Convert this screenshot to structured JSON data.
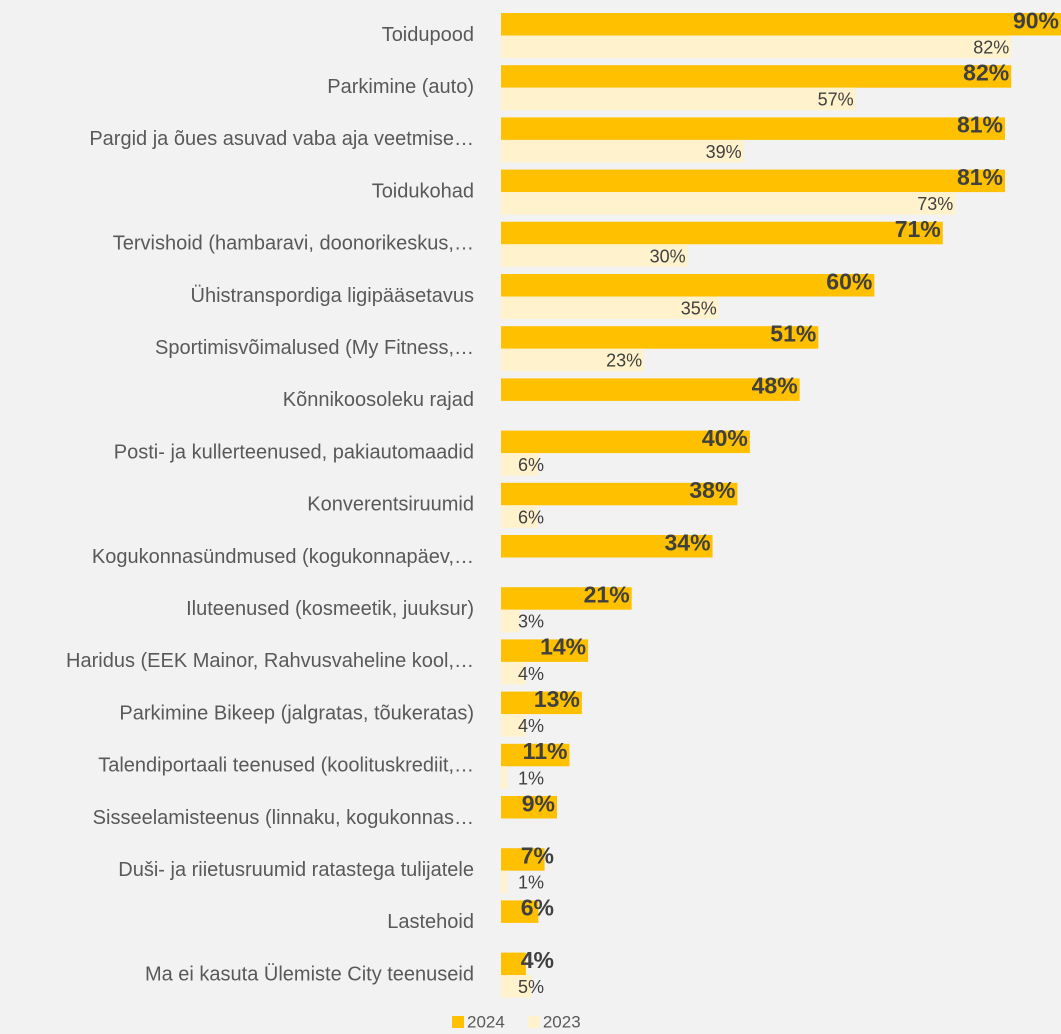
{
  "chart_data": {
    "type": "barh",
    "categories": [
      "Toidupood",
      "Parkimine (auto)",
      "Pargid ja õues asuvad vaba aja veetmise…",
      "Toidukohad",
      "Tervishoid (hambaravi, doonorikeskus,…",
      "Ühistranspordiga ligipääsetavus",
      "Sportimisvõimalused (My Fitness,…",
      "Kõnnikoosoleku rajad",
      "Posti- ja kullerteenused, pakiautomaadid",
      "Konverentsiruumid",
      "Kogukonnasündmused (kogukonnapäev,…",
      "Iluteenused (kosmeetik, juuksur)",
      "Haridus (EEK Mainor, Rahvusvaheline kool,…",
      "Parkimine Bikeep (jalgratas, tõukeratas)",
      "Talendiportaali teenused (koolituskrediit,…",
      "Sisseelamisteenus (linnaku, kogukonnas…",
      "Duši- ja riietusruumid ratastega tulijatele",
      "Lastehoid",
      "Ma ei kasuta Ülemiste City teenuseid"
    ],
    "series": [
      {
        "name": "2024",
        "color": "#ffc000",
        "values": [
          90,
          82,
          81,
          81,
          71,
          60,
          51,
          48,
          40,
          38,
          34,
          21,
          14,
          13,
          11,
          9,
          7,
          6,
          4
        ],
        "value_labels": [
          "90%",
          "82%",
          "81%",
          "81%",
          "71%",
          "60%",
          "51%",
          "48%",
          "40%",
          "38%",
          "34%",
          "21%",
          "14%",
          "13%",
          "11%",
          "9%",
          "7%",
          "6%",
          "4%"
        ]
      },
      {
        "name": "2023",
        "color": "#fff2cc",
        "values": [
          82,
          57,
          39,
          73,
          30,
          35,
          23,
          null,
          6,
          6,
          null,
          3,
          4,
          4,
          1,
          null,
          1,
          null,
          5
        ],
        "value_labels": [
          "82%",
          "57%",
          "39%",
          "73%",
          "30%",
          "35%",
          "23%",
          null,
          "6%",
          "6%",
          null,
          "3%",
          "4%",
          "4%",
          "1%",
          null,
          "1%",
          null,
          "5%"
        ]
      }
    ],
    "xlim": [
      0,
      90
    ],
    "legend": "bottom"
  }
}
